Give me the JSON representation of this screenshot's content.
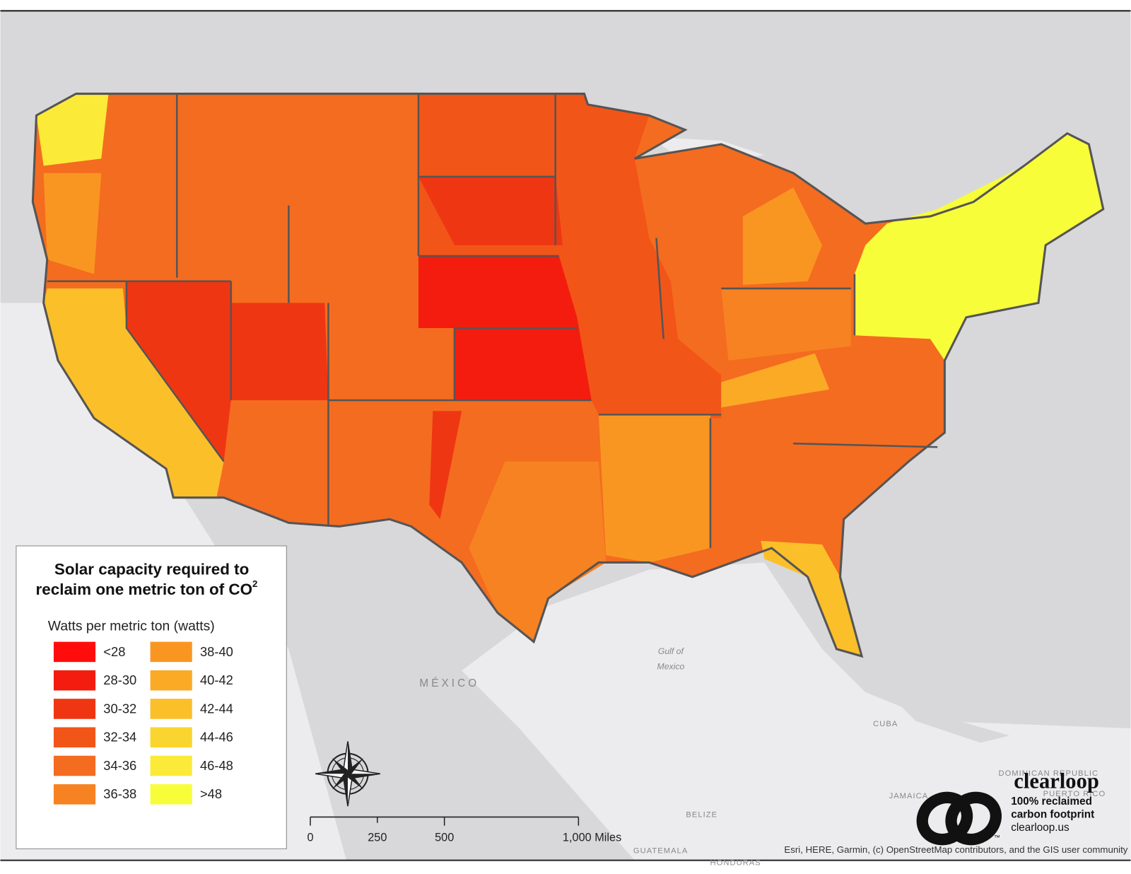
{
  "legend": {
    "title_lines": [
      "Solar capacity required to",
      "reclaim one metric ton of CO"
    ],
    "title_superscript": "2",
    "subtitle": "Watts per metric ton (watts)",
    "items": [
      {
        "label": "<28",
        "color": "#ff0d0d"
      },
      {
        "label": "28-30",
        "color": "#f41c0e"
      },
      {
        "label": "30-32",
        "color": "#ef3612"
      },
      {
        "label": "32-34",
        "color": "#f25518"
      },
      {
        "label": "34-36",
        "color": "#f46c20"
      },
      {
        "label": "36-38",
        "color": "#f78222"
      },
      {
        "label": "38-40",
        "color": "#f99622"
      },
      {
        "label": "40-42",
        "color": "#fbaa26"
      },
      {
        "label": "42-44",
        "color": "#fbbf2a"
      },
      {
        "label": "44-46",
        "color": "#fbd52f"
      },
      {
        "label": "46-48",
        "color": "#fbea38"
      },
      {
        "label": ">48",
        "color": "#f8fd3a"
      }
    ]
  },
  "scale_bar": {
    "labels": [
      "0",
      "250",
      "500",
      "1,000 Miles"
    ]
  },
  "place_labels": [
    "MÉXICO",
    "Gulf of",
    "Mexico",
    "CUBA",
    "BELIZE",
    "GUATEMALA",
    "JAMAICA",
    "DOMINICAN REPUBLIC",
    "PUERTO RICO",
    "HONDURAS"
  ],
  "attribution": "Esri, HERE, Garmin, (c) OpenStreetMap contributors, and the GIS user community",
  "logo": {
    "name": "clearloop",
    "trademark": "™",
    "lines": [
      "100% reclaimed",
      "carbon footprint"
    ],
    "url": "clearloop.us"
  }
}
